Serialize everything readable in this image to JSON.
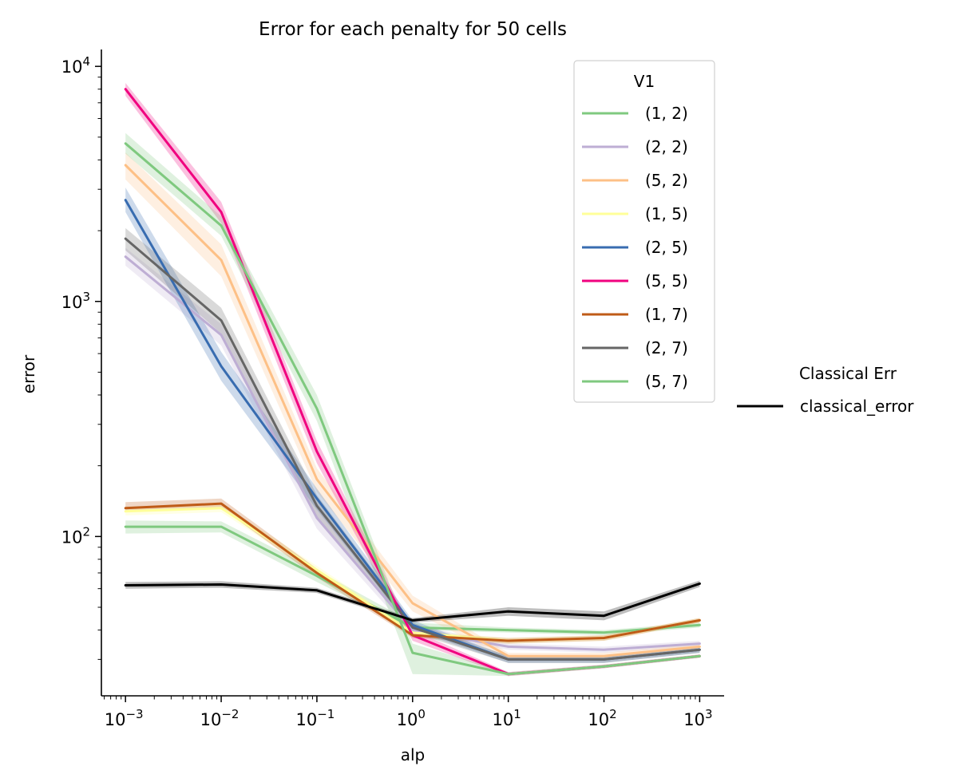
{
  "chart_data": {
    "type": "line",
    "title": "Error for each penalty for 50 cells",
    "xlabel": "alp",
    "ylabel": "error",
    "xscale": "log",
    "yscale": "log",
    "xlim": [
      0.00056,
      1800
    ],
    "ylim": [
      21,
      11800
    ],
    "grid": false,
    "x": [
      0.001,
      0.01,
      0.1,
      1,
      10,
      100,
      1000
    ],
    "x_ticks": [
      {
        "base": "10",
        "exp": "−3"
      },
      {
        "base": "10",
        "exp": "−2"
      },
      {
        "base": "10",
        "exp": "−1"
      },
      {
        "base": "10",
        "exp": "0"
      },
      {
        "base": "10",
        "exp": "1"
      },
      {
        "base": "10",
        "exp": "2"
      },
      {
        "base": "10",
        "exp": "3"
      }
    ],
    "y_ticks": [
      {
        "value": 100,
        "base": "10",
        "exp": "2"
      },
      {
        "value": 1000,
        "base": "10",
        "exp": "3"
      },
      {
        "value": 10000,
        "base": "10",
        "exp": "4"
      }
    ],
    "legend_v1": {
      "title": "V1",
      "placement": "upper-right-inside",
      "series": [
        {
          "name": "(1, 2)",
          "color": "#7fc97f",
          "values": [
            110,
            110,
            68,
            41,
            40,
            39,
            42
          ],
          "lower": [
            103,
            104,
            64,
            40,
            39,
            38,
            41
          ],
          "upper": [
            117,
            116,
            72,
            43,
            41,
            40,
            43
          ]
        },
        {
          "name": "(2, 2)",
          "color": "#beaed4",
          "values": [
            1550,
            720,
            120,
            40,
            34,
            33,
            35
          ],
          "lower": [
            1420,
            650,
            108,
            38,
            33,
            32,
            34
          ],
          "upper": [
            1690,
            800,
            132,
            42,
            35,
            34,
            36
          ]
        },
        {
          "name": "(5, 2)",
          "color": "#fdc086",
          "values": [
            3800,
            1500,
            175,
            52,
            31,
            31,
            34
          ],
          "lower": [
            3300,
            1280,
            155,
            48,
            30,
            30,
            33
          ],
          "upper": [
            4300,
            1750,
            195,
            56,
            32,
            32,
            35
          ]
        },
        {
          "name": "(1, 5)",
          "color": "#ffff99",
          "values": [
            128,
            132,
            72,
            39,
            36,
            37,
            44
          ],
          "lower": [
            123,
            127,
            69,
            38,
            35,
            36,
            43
          ],
          "upper": [
            134,
            138,
            75,
            40,
            37,
            38,
            45
          ]
        },
        {
          "name": "(2, 5)",
          "color": "#386cb0",
          "values": [
            2700,
            530,
            145,
            42,
            30,
            30,
            33
          ],
          "lower": [
            2400,
            460,
            130,
            40,
            29,
            29,
            32
          ],
          "upper": [
            3050,
            610,
            160,
            44,
            31,
            31,
            34
          ]
        },
        {
          "name": "(5, 5)",
          "color": "#f0027f",
          "values": [
            8000,
            2400,
            230,
            38,
            26,
            28,
            31
          ],
          "lower": [
            7500,
            2150,
            205,
            36,
            25.5,
            27.5,
            30.5
          ],
          "upper": [
            8500,
            2650,
            255,
            40,
            26.5,
            28.5,
            31.5
          ]
        },
        {
          "name": "(1, 7)",
          "color": "#bf5b17",
          "values": [
            132,
            138,
            70,
            38,
            36,
            37,
            44
          ],
          "lower": [
            127,
            132,
            67,
            37,
            35,
            36,
            43
          ],
          "upper": [
            140,
            145,
            73,
            39,
            37,
            38,
            45
          ]
        },
        {
          "name": "(2, 7)",
          "color": "#666666",
          "values": [
            1850,
            830,
            135,
            41,
            30,
            30,
            33
          ],
          "lower": [
            1650,
            730,
            120,
            39,
            29,
            29,
            32
          ],
          "upper": [
            2050,
            940,
            150,
            43,
            31,
            31,
            34
          ]
        },
        {
          "name": "(5, 7)",
          "color": "#7fc97f",
          "values": [
            4700,
            2100,
            350,
            32,
            26,
            28,
            31
          ],
          "lower": [
            4250,
            1900,
            310,
            26,
            25.5,
            27.5,
            30.5
          ],
          "upper": [
            5200,
            2300,
            400,
            35,
            26.5,
            28.5,
            31.5
          ]
        }
      ]
    },
    "legend_classical": {
      "title": "Classical Err",
      "placement": "right-outside",
      "series": [
        {
          "name": "classical_error",
          "color": "#000000",
          "values": [
            62,
            62.5,
            59,
            44,
            48,
            46,
            63
          ],
          "lower": [
            60,
            60.5,
            57.5,
            43,
            46,
            44,
            61
          ],
          "upper": [
            64,
            64.5,
            60.5,
            45,
            50,
            48,
            65
          ]
        }
      ]
    }
  }
}
